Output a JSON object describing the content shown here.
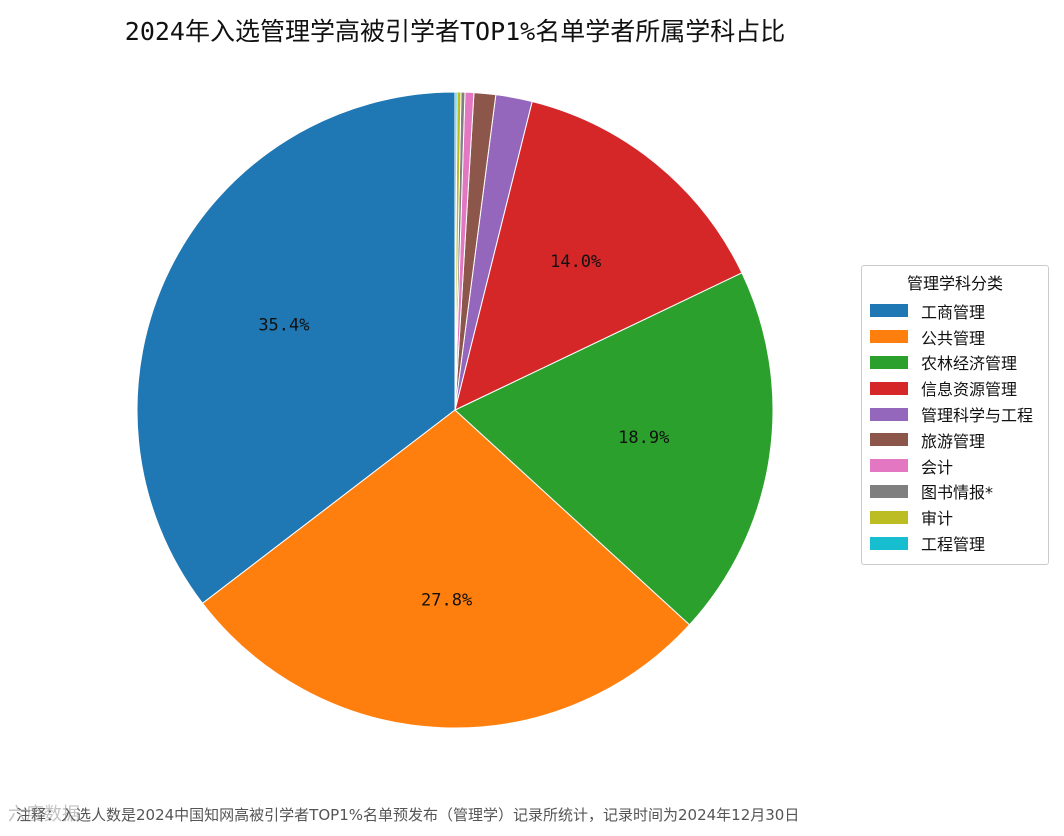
{
  "chart_data": {
    "type": "pie",
    "title": "2024年入选管理学高被引学者TOP1%名单学者所属学科占比",
    "legend_title": "管理学科分类",
    "legend_placement": "right",
    "start_angle_deg": 90,
    "direction": "counterclockwise",
    "slices": [
      {
        "label": "工商管理",
        "value": 35.4,
        "pct_label": "35.4%",
        "color": "#1f77b4"
      },
      {
        "label": "公共管理",
        "value": 27.8,
        "pct_label": "27.8%",
        "color": "#ff7f0e"
      },
      {
        "label": "农林经济管理",
        "value": 18.9,
        "pct_label": "18.9%",
        "color": "#2ca02c"
      },
      {
        "label": "信息资源管理",
        "value": 14.0,
        "pct_label": "14.0%",
        "color": "#d62728"
      },
      {
        "label": "管理科学与工程",
        "value": 1.85,
        "pct_label": "",
        "color": "#9467bd"
      },
      {
        "label": "旅游管理",
        "value": 1.1,
        "pct_label": "",
        "color": "#8c564b"
      },
      {
        "label": "会计",
        "value": 0.45,
        "pct_label": "",
        "color": "#e377c2"
      },
      {
        "label": "图书情报*",
        "value": 0.2,
        "pct_label": "",
        "color": "#7f7f7f"
      },
      {
        "label": "审计",
        "value": 0.2,
        "pct_label": "",
        "color": "#bcbd22"
      },
      {
        "label": "工程管理",
        "value": 0.1,
        "pct_label": "",
        "color": "#17becf"
      }
    ]
  },
  "note": "注释：入选人数是2024中国知网高被引学者TOP1%名单预发布（管理学）记录所统计，记录时间为2024年12月30日",
  "watermark": "六度数据"
}
